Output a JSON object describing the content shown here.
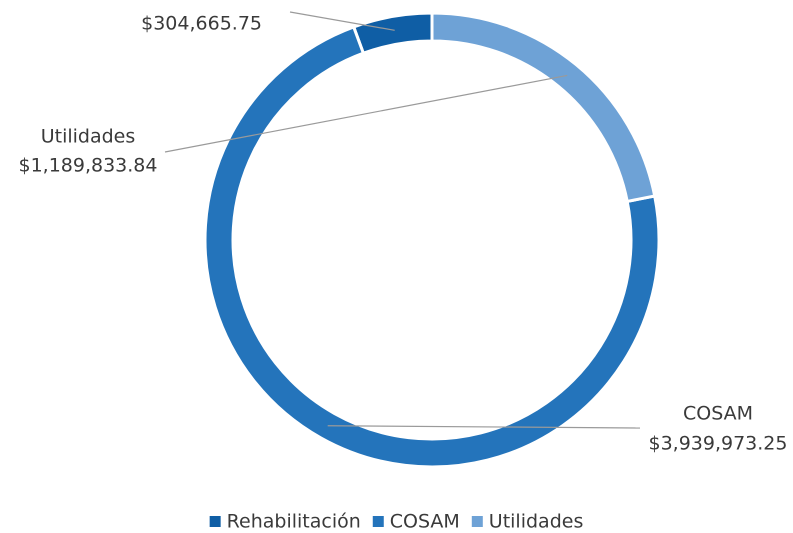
{
  "chart_data": {
    "type": "donut",
    "categories": [
      "Rehabilitación",
      "COSAM",
      "Utilidades"
    ],
    "values": [
      304665.75,
      3939973.25,
      1189833.84
    ],
    "value_labels": [
      "$304,665.75",
      "$3,939,973.25",
      "$1,189,833.84"
    ],
    "colors": [
      "#0f5ea5",
      "#2474bb",
      "#6ea2d6"
    ],
    "legend": "bottom"
  }
}
